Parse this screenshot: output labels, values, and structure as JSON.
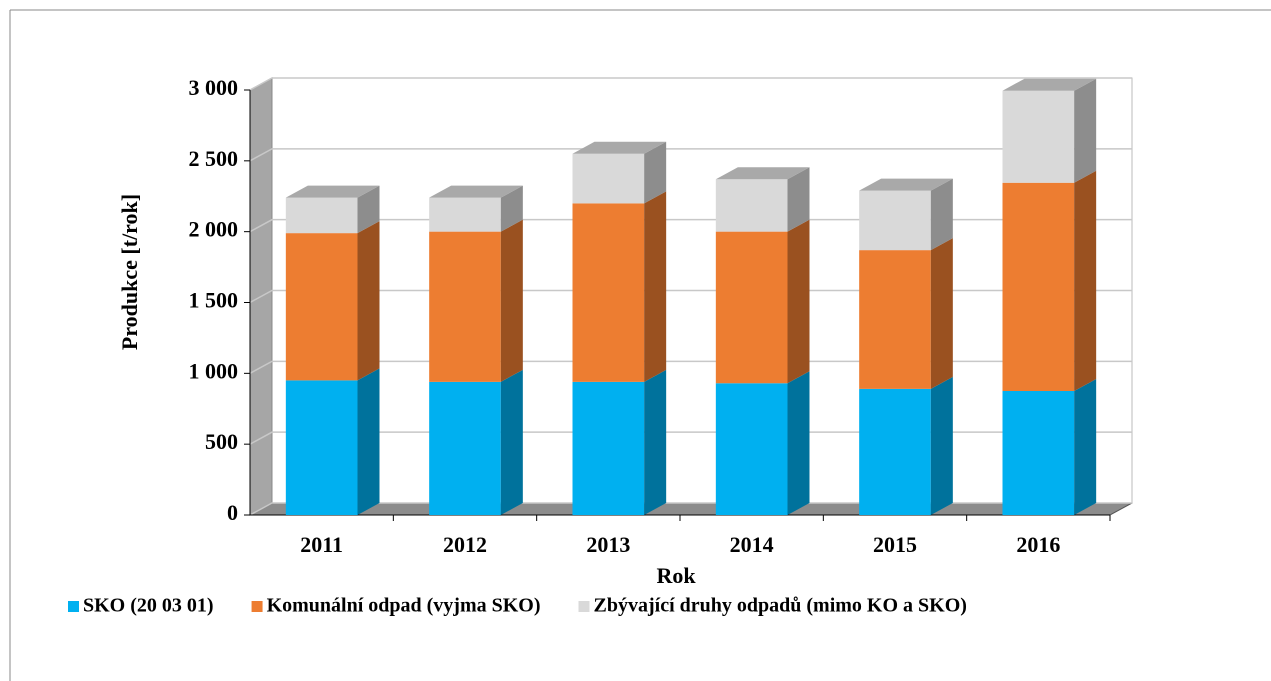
{
  "chart_data": {
    "type": "bar3d_stacked",
    "x_label": "Rok",
    "y_label": "Produkce [t/rok]",
    "categories": [
      "2011",
      "2012",
      "2013",
      "2014",
      "2015",
      "2016"
    ],
    "series": [
      {
        "name": "SKO (20 03 01)",
        "color": "#00b0f0",
        "values": [
          950,
          940,
          940,
          930,
          890,
          875
        ]
      },
      {
        "name": "Komunální odpad (vyjma SKO)",
        "color": "#ed7d31",
        "values": [
          1040,
          1060,
          1260,
          1070,
          980,
          1470
        ]
      },
      {
        "name": "Zbývající druhy odpadů (mimo KO a SKO)",
        "color": "#d9d9d9",
        "values": [
          250,
          240,
          350,
          370,
          420,
          650
        ]
      }
    ],
    "ylim": [
      0,
      3000
    ],
    "yticks": [
      0,
      500,
      {
        "value": 1000,
        "label": "1 000"
      },
      {
        "value": 1500,
        "label": "1 500"
      },
      {
        "value": 2000,
        "label": "2 000"
      },
      {
        "value": 2500,
        "label": "2 500"
      },
      {
        "value": 3000,
        "label": "3 000"
      }
    ],
    "grid": true,
    "legend": "bottom"
  }
}
